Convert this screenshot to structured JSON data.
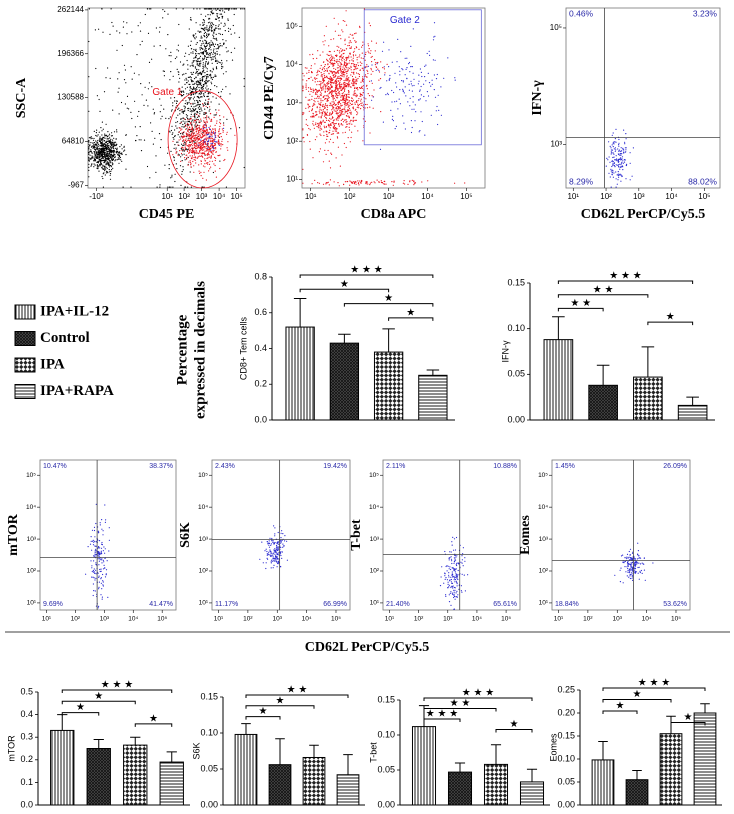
{
  "legend": [
    {
      "name": "IPA+IL-12",
      "pattern": "vertical"
    },
    {
      "name": "Control",
      "pattern": "crosshatch"
    },
    {
      "name": "IPA",
      "pattern": "checker"
    },
    {
      "name": "IPA+RAPA",
      "pattern": "horizontal"
    }
  ],
  "figure_labels": {
    "percentage": [
      "Percentage",
      "expressed in decimals"
    ],
    "shared_x": "CD62L PerCP/Cy5.5"
  },
  "chart_data": [
    {
      "type": "flow",
      "xlabel": "CD45 PE",
      "ylabel": "SSC-A",
      "xscale": "symlog",
      "yscale": "linear",
      "xlim": [
        -3000,
        300000
      ],
      "ylim": [
        -5000,
        265000
      ],
      "xticks": [
        {
          "value": -1000,
          "label": "-10³"
        },
        {
          "value": 10,
          "label": "10¹"
        },
        {
          "value": 100,
          "label": "10²"
        },
        {
          "value": 1000,
          "label": "10³"
        },
        {
          "value": 10000,
          "label": "10⁴"
        },
        {
          "value": 100000,
          "label": "10⁵"
        }
      ],
      "yticks": [
        -967,
        64810,
        130588,
        196366,
        262144
      ],
      "gate": "Gate 1"
    },
    {
      "type": "flow",
      "xlabel": "CD8a APC",
      "ylabel": "CD44 PE/Cy7",
      "xscale": "log",
      "yscale": "log",
      "xlim": [
        6,
        300000
      ],
      "ylim": [
        6,
        300000
      ],
      "xticks": [
        {
          "value": 10,
          "label": "10¹"
        },
        {
          "value": 100,
          "label": "10²"
        },
        {
          "value": 1000,
          "label": "10³"
        },
        {
          "value": 10000,
          "label": "10⁴"
        },
        {
          "value": 100000,
          "label": "10⁵"
        }
      ],
      "yticks": [
        {
          "value": 10,
          "label": "10¹"
        },
        {
          "value": 100,
          "label": "10²"
        },
        {
          "value": 1000,
          "label": "10³"
        },
        {
          "value": 10000,
          "label": "10⁴"
        },
        {
          "value": 100000,
          "label": "10⁵"
        }
      ],
      "gate": "Gate 2"
    },
    {
      "type": "flow",
      "xlabel": "CD62L PerCP/Cy5.5",
      "ylabel": "IFN-γ",
      "xscale": "log",
      "yscale": "log",
      "xlim": [
        6,
        300000
      ],
      "ylim": [
        180,
        220000
      ],
      "xticks": [
        {
          "value": 10,
          "label": "10¹"
        },
        {
          "value": 100,
          "label": "10²"
        },
        {
          "value": 1000,
          "label": "10³"
        },
        {
          "value": 10000,
          "label": "10⁴"
        },
        {
          "value": 100000,
          "label": "10⁵"
        }
      ],
      "yticks": [
        {
          "value": 1000,
          "label": "10³"
        },
        {
          "value": 100000,
          "label": "10⁵"
        }
      ],
      "quadrant_labels": [
        "0.46%",
        "3.23%",
        "8.29%",
        "88.02%"
      ]
    },
    {
      "type": "bar",
      "ylabel": "CD8+ Tem cells",
      "values": [
        0.52,
        0.43,
        0.38,
        0.25
      ],
      "errors": [
        0.16,
        0.05,
        0.13,
        0.03
      ],
      "ylim": [
        0,
        0.8
      ],
      "yticks": [
        {
          "value": 0,
          "label": "0.0"
        },
        0.2,
        0.4,
        0.6,
        0.8
      ],
      "brackets": [
        {
          "between": [
            "IPA+IL-12",
            "IPA+RAPA"
          ],
          "label": "★ ★ ★"
        },
        {
          "between": [
            "IPA+IL-12",
            "IPA"
          ],
          "label": "★"
        },
        {
          "between": [
            "Control",
            "IPA+RAPA"
          ],
          "label": "★"
        },
        {
          "between": [
            "IPA",
            "IPA+RAPA"
          ],
          "label": "★"
        }
      ]
    },
    {
      "type": "bar",
      "ylabel": "IFN-γ",
      "values": [
        0.088,
        0.038,
        0.047,
        0.016
      ],
      "errors": [
        0.025,
        0.022,
        0.033,
        0.009
      ],
      "ylim": [
        0,
        0.15
      ],
      "yticks": [
        {
          "value": 0,
          "label": "0.00"
        },
        0.05,
        {
          "value": 0.1,
          "label": "0.10"
        },
        0.15
      ],
      "brackets": [
        {
          "between": [
            "IPA+IL-12",
            "IPA+RAPA"
          ],
          "label": "★ ★ ★"
        },
        {
          "between": [
            "IPA+IL-12",
            "IPA"
          ],
          "label": "★ ★"
        },
        {
          "between": [
            "IPA+IL-12",
            "Control"
          ],
          "label": "★ ★"
        },
        {
          "between": [
            "IPA",
            "IPA+RAPA"
          ],
          "label": "★"
        }
      ]
    },
    {
      "type": "flow",
      "ylabel": "mTOR",
      "xscale": "log",
      "yscale": "log",
      "xlim": [
        6,
        300000
      ],
      "ylim": [
        6,
        300000
      ],
      "xticks": [
        {
          "value": 10,
          "label": "10¹"
        },
        {
          "value": 100,
          "label": "10²"
        },
        {
          "value": 1000,
          "label": "10³"
        },
        {
          "value": 10000,
          "label": "10⁴"
        },
        {
          "value": 100000,
          "label": "10⁵"
        }
      ],
      "yticks": [
        {
          "value": 10,
          "label": "10¹"
        },
        {
          "value": 100,
          "label": "10²"
        },
        {
          "value": 1000,
          "label": "10³"
        },
        {
          "value": 10000,
          "label": "10⁴"
        },
        {
          "value": 100000,
          "label": "10⁵"
        }
      ],
      "quadrant_labels": [
        "10.47%",
        "38.37%",
        "9.69%",
        "41.47%"
      ]
    },
    {
      "type": "flow",
      "ylabel": "S6K",
      "xscale": "log",
      "yscale": "log",
      "xlim": [
        6,
        300000
      ],
      "ylim": [
        6,
        300000
      ],
      "xticks": [
        {
          "value": 10,
          "label": "10¹"
        },
        {
          "value": 100,
          "label": "10²"
        },
        {
          "value": 1000,
          "label": "10³"
        },
        {
          "value": 10000,
          "label": "10⁴"
        },
        {
          "value": 100000,
          "label": "10⁵"
        }
      ],
      "yticks": [
        {
          "value": 10,
          "label": "10¹"
        },
        {
          "value": 100,
          "label": "10²"
        },
        {
          "value": 1000,
          "label": "10³"
        },
        {
          "value": 10000,
          "label": "10⁴"
        },
        {
          "value": 100000,
          "label": "10⁵"
        }
      ],
      "quadrant_labels": [
        "2.43%",
        "19.42%",
        "11.17%",
        "66.99%"
      ]
    },
    {
      "type": "flow",
      "ylabel": "T-bet",
      "xscale": "log",
      "yscale": "log",
      "xlim": [
        6,
        300000
      ],
      "ylim": [
        6,
        300000
      ],
      "xticks": [
        {
          "value": 10,
          "label": "10¹"
        },
        {
          "value": 100,
          "label": "10²"
        },
        {
          "value": 1000,
          "label": "10³"
        },
        {
          "value": 10000,
          "label": "10⁴"
        },
        {
          "value": 100000,
          "label": "10⁵"
        }
      ],
      "yticks": [
        {
          "value": 10,
          "label": "10¹"
        },
        {
          "value": 100,
          "label": "10²"
        },
        {
          "value": 1000,
          "label": "10³"
        },
        {
          "value": 10000,
          "label": "10⁴"
        },
        {
          "value": 100000,
          "label": "10⁵"
        }
      ],
      "quadrant_labels": [
        "2.11%",
        "10.88%",
        "21.40%",
        "65.61%"
      ]
    },
    {
      "type": "flow",
      "ylabel": "Eomes",
      "xscale": "log",
      "yscale": "log",
      "xlim": [
        6,
        300000
      ],
      "ylim": [
        6,
        300000
      ],
      "xticks": [
        {
          "value": 10,
          "label": "10¹"
        },
        {
          "value": 100,
          "label": "10²"
        },
        {
          "value": 1000,
          "label": "10³"
        },
        {
          "value": 10000,
          "label": "10⁴"
        },
        {
          "value": 100000,
          "label": "10⁵"
        }
      ],
      "yticks": [
        {
          "value": 10,
          "label": "10¹"
        },
        {
          "value": 100,
          "label": "10²"
        },
        {
          "value": 1000,
          "label": "10³"
        },
        {
          "value": 10000,
          "label": "10⁴"
        },
        {
          "value": 100000,
          "label": "10⁵"
        }
      ],
      "quadrant_labels": [
        "1.45%",
        "26.09%",
        "18.84%",
        "53.62%"
      ]
    },
    {
      "type": "bar",
      "ylabel": "mTOR",
      "values": [
        0.33,
        0.25,
        0.265,
        0.19
      ],
      "errors": [
        0.07,
        0.04,
        0.035,
        0.045
      ],
      "ylim": [
        0,
        0.5
      ],
      "yticks": [
        {
          "value": 0,
          "label": "0.0"
        },
        0.1,
        0.2,
        0.3,
        0.4,
        0.5
      ],
      "brackets": [
        {
          "between": [
            "IPA+IL-12",
            "IPA+RAPA"
          ],
          "label": "★ ★ ★"
        },
        {
          "between": [
            "IPA+IL-12",
            "IPA"
          ],
          "label": "★"
        },
        {
          "between": [
            "IPA+IL-12",
            "Control"
          ],
          "label": "★"
        },
        {
          "between": [
            "IPA",
            "IPA+RAPA"
          ],
          "label": "★"
        }
      ]
    },
    {
      "type": "bar",
      "ylabel": "S6K",
      "values": [
        0.098,
        0.056,
        0.066,
        0.042
      ],
      "errors": [
        0.015,
        0.036,
        0.017,
        0.028
      ],
      "ylim": [
        0,
        0.15
      ],
      "yticks": [
        {
          "value": 0,
          "label": "0.00"
        },
        0.05,
        {
          "value": 0.1,
          "label": "0.10"
        },
        0.15
      ],
      "brackets": [
        {
          "between": [
            "IPA+IL-12",
            "IPA+RAPA"
          ],
          "label": "★ ★"
        },
        {
          "between": [
            "IPA+IL-12",
            "IPA"
          ],
          "label": "★"
        },
        {
          "between": [
            "IPA+IL-12",
            "Control"
          ],
          "label": "★"
        }
      ]
    },
    {
      "type": "bar",
      "ylabel": "T-bet",
      "values": [
        0.112,
        0.047,
        0.058,
        0.033
      ],
      "errors": [
        0.03,
        0.013,
        0.028,
        0.018
      ],
      "ylim": [
        0,
        0.15
      ],
      "yticks": [
        {
          "value": 0,
          "label": "0.00"
        },
        0.05,
        {
          "value": 0.1,
          "label": "0.10"
        },
        0.15
      ],
      "brackets": [
        {
          "between": [
            "IPA+IL-12",
            "IPA+RAPA"
          ],
          "label": "★ ★ ★"
        },
        {
          "between": [
            "IPA+IL-12",
            "IPA"
          ],
          "label": "★ ★"
        },
        {
          "between": [
            "IPA+IL-12",
            "Control"
          ],
          "label": "★ ★ ★"
        },
        {
          "between": [
            "IPA",
            "IPA+RAPA"
          ],
          "label": "★"
        }
      ]
    },
    {
      "type": "bar",
      "ylabel": "Eomes",
      "values": [
        0.098,
        0.055,
        0.155,
        0.2
      ],
      "errors": [
        0.04,
        0.02,
        0.038,
        0.02
      ],
      "ylim": [
        0,
        0.25
      ],
      "yticks": [
        {
          "value": 0,
          "label": "0.00"
        },
        0.05,
        {
          "value": 0.1,
          "label": "0.10"
        },
        0.15,
        {
          "value": 0.2,
          "label": "0.20"
        },
        0.25
      ],
      "brackets": [
        {
          "between": [
            "IPA+IL-12",
            "IPA+RAPA"
          ],
          "label": "★ ★ ★"
        },
        {
          "between": [
            "IPA+IL-12",
            "IPA"
          ],
          "label": "★"
        },
        {
          "between": [
            "IPA+IL-12",
            "Control"
          ],
          "label": "★"
        },
        {
          "between": [
            "IPA",
            "IPA+RAPA"
          ],
          "label": "★"
        }
      ]
    }
  ]
}
